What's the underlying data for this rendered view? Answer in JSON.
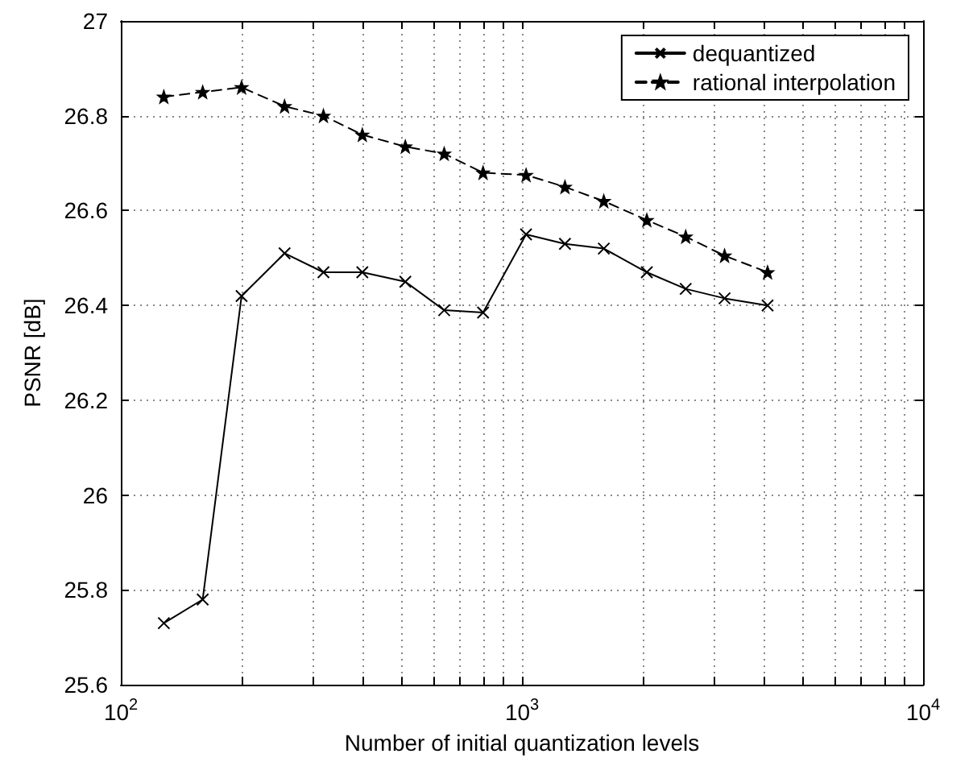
{
  "chart_data": {
    "type": "line",
    "xlabel": "Number of initial quantization levels",
    "ylabel": "PSNR [dB]",
    "x": [
      128,
      160,
      200,
      256,
      320,
      400,
      512,
      640,
      800,
      1024,
      1280,
      1600,
      2048,
      2560,
      3200,
      4096
    ],
    "series": [
      {
        "name": "dequantized",
        "color": "#000000",
        "marker": "cross",
        "line_style": "solid",
        "values": [
          25.73,
          25.78,
          26.42,
          26.51,
          26.47,
          26.47,
          26.45,
          26.39,
          26.385,
          26.55,
          26.53,
          26.52,
          26.47,
          26.435,
          26.415,
          26.4
        ]
      },
      {
        "name": "rational interpolation",
        "color": "#000000",
        "marker": "star",
        "line_style": "dashed",
        "values": [
          26.84,
          26.85,
          26.86,
          26.82,
          26.8,
          26.76,
          26.735,
          26.72,
          26.68,
          26.675,
          26.65,
          26.62,
          26.58,
          26.545,
          26.505,
          26.47
        ]
      }
    ],
    "log": "x",
    "xlim": [
      100,
      10000
    ],
    "xticks": [
      {
        "value": 100,
        "label": "10$^{2}$"
      },
      {
        "value": 1000,
        "label": "10$^{3}$"
      },
      {
        "value": 10000,
        "label": "10$^{4}$"
      }
    ],
    "ylim": [
      25.6,
      27
    ],
    "yticks": [
      25.6,
      25.8,
      26,
      26.2,
      26.4,
      26.6,
      26.8,
      27
    ],
    "grid": true,
    "legend": "top right"
  }
}
